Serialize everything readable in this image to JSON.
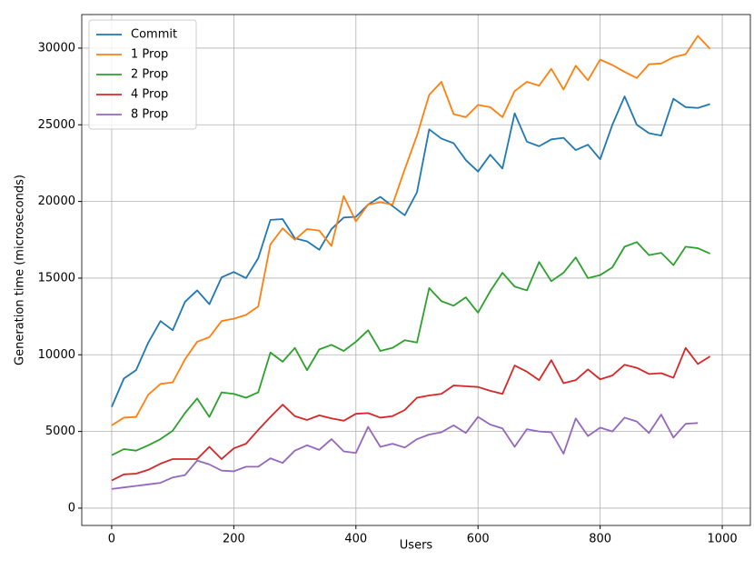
{
  "chart_data": {
    "type": "line",
    "xlabel": "Users",
    "ylabel": "Generation time (microseconds)",
    "x": [
      0,
      20,
      40,
      60,
      80,
      100,
      120,
      140,
      160,
      180,
      200,
      220,
      240,
      260,
      280,
      300,
      320,
      340,
      360,
      380,
      400,
      420,
      440,
      460,
      480,
      500,
      520,
      540,
      560,
      580,
      600,
      620,
      640,
      660,
      680,
      700,
      720,
      740,
      760,
      780,
      800,
      820,
      840,
      860,
      880,
      900,
      920,
      940,
      960,
      980
    ],
    "series": [
      {
        "name": "Commit",
        "color": "#1f77b4",
        "values": [
          6600,
          8450,
          9000,
          10800,
          12200,
          11600,
          13450,
          14200,
          13300,
          15050,
          15400,
          15000,
          16300,
          18800,
          18850,
          17600,
          17400,
          16850,
          18200,
          18950,
          19000,
          19800,
          20300,
          19700,
          19100,
          20600,
          24700,
          24100,
          23800,
          22700,
          21950,
          23050,
          22150,
          25750,
          23900,
          23600,
          24050,
          24150,
          23350,
          23700,
          22750,
          25000,
          26850,
          25000,
          24450,
          24300,
          26700,
          26150,
          26100,
          26350
        ]
      },
      {
        "name": "1 Prop",
        "color": "#ff7f0e",
        "values": [
          5400,
          5900,
          5950,
          7400,
          8100,
          8200,
          9700,
          10850,
          11150,
          12200,
          12350,
          12600,
          13150,
          17200,
          18250,
          17500,
          18200,
          18100,
          17100,
          20350,
          18700,
          19800,
          19950,
          19800,
          22100,
          24300,
          26950,
          27800,
          25700,
          25500,
          26300,
          26150,
          25500,
          27200,
          27800,
          27550,
          28650,
          27300,
          28850,
          27900,
          29250,
          28900,
          28450,
          28050,
          28950,
          29000,
          29400,
          29600,
          30800,
          29950
        ]
      },
      {
        "name": "2 Prop",
        "color": "#2ca02c",
        "values": [
          3450,
          3850,
          3750,
          4100,
          4500,
          5050,
          6200,
          7150,
          5950,
          7550,
          7450,
          7200,
          7550,
          10150,
          9550,
          10450,
          9000,
          10350,
          10650,
          10250,
          10850,
          11600,
          10250,
          10450,
          10950,
          10800,
          14350,
          13500,
          13200,
          13750,
          12750,
          14150,
          15350,
          14450,
          14200,
          16050,
          14800,
          15350,
          16350,
          15000,
          15200,
          15700,
          17050,
          17350,
          16500,
          16650,
          15850,
          17050,
          16950,
          16600
        ]
      },
      {
        "name": "4 Prop",
        "color": "#d62728",
        "values": [
          1800,
          2200,
          2250,
          2500,
          2900,
          3200,
          3200,
          3200,
          4000,
          3200,
          3900,
          4200,
          5100,
          5950,
          6750,
          6000,
          5750,
          6050,
          5850,
          5700,
          6150,
          6200,
          5900,
          6000,
          6400,
          7200,
          7350,
          7450,
          8000,
          7950,
          7900,
          7650,
          7450,
          9300,
          8900,
          8350,
          9650,
          8150,
          8350,
          9050,
          8400,
          8650,
          9350,
          9150,
          8750,
          8800,
          8500,
          10450,
          9400,
          9900
        ]
      },
      {
        "name": "8 Prop",
        "color": "#9467bd",
        "values": [
          1250,
          1350,
          1450,
          1550,
          1650,
          2000,
          2150,
          3100,
          2850,
          2450,
          2400,
          2700,
          2700,
          3250,
          2950,
          3750,
          4100,
          3800,
          4500,
          3700,
          3600,
          5300,
          4000,
          4200,
          3950,
          4500,
          4800,
          4950,
          5400,
          4900,
          5950,
          5450,
          5200,
          4000,
          5150,
          5000,
          4950,
          3550,
          5850,
          4700,
          5250,
          5000,
          5900,
          5650,
          4900,
          6100,
          4600,
          5500,
          5550,
          null
        ]
      }
    ],
    "xlim": [
      -49,
      1046
    ],
    "xticks": [
      0,
      200,
      400,
      600,
      800,
      1000
    ],
    "ylim": [
      -1130,
      32190
    ],
    "yticks": [
      0,
      5000,
      10000,
      15000,
      20000,
      25000,
      30000
    ],
    "grid": true,
    "legend": "upper left"
  }
}
